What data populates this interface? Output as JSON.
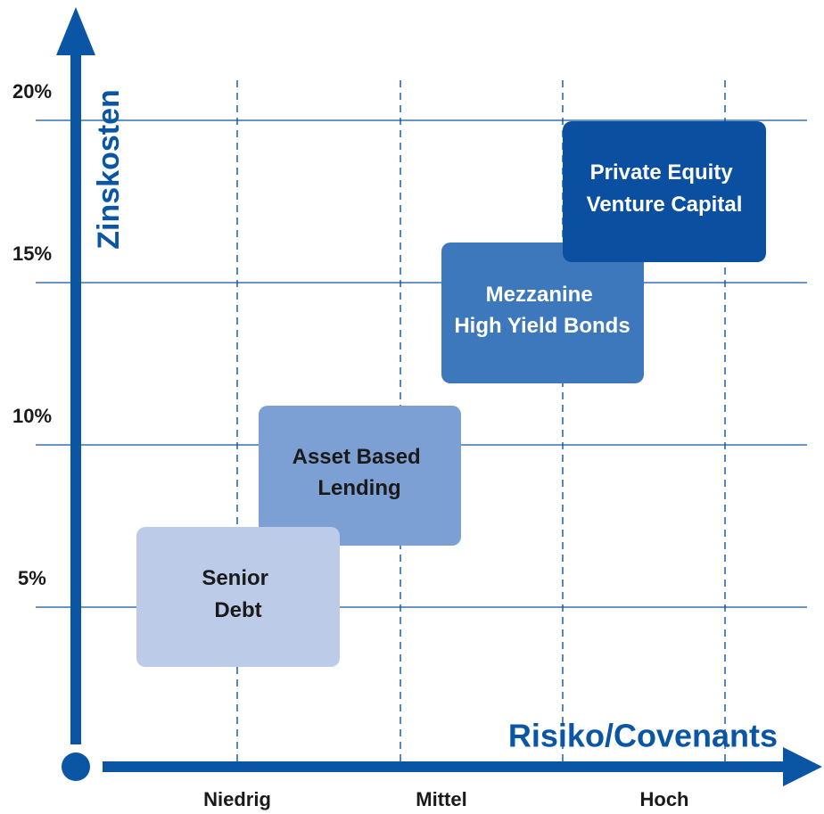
{
  "y_axis": {
    "label": "Zinskosten",
    "ticks": [
      "20%",
      "15%",
      "10%",
      "5%"
    ]
  },
  "x_axis": {
    "label": "Risiko/Covenants",
    "categories": [
      "Niedrig",
      "Mittel",
      "Hoch"
    ]
  },
  "boxes": [
    {
      "lines": [
        "Asset Based",
        "Lending"
      ]
    },
    {
      "lines": [
        "Senior",
        "Debt"
      ]
    },
    {
      "lines": [
        "Mezzanine",
        "High Yield Bonds"
      ]
    },
    {
      "lines": [
        "Private Equity",
        "Venture Capital"
      ]
    }
  ]
}
